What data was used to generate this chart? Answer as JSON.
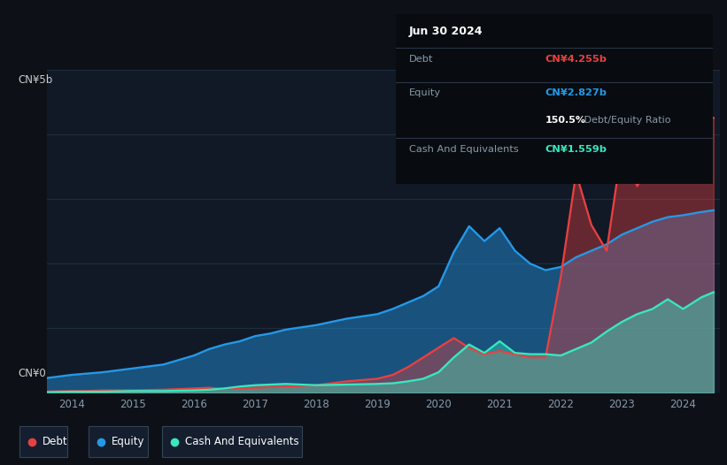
{
  "bg_color": "#0d1117",
  "plot_bg_color": "#111927",
  "title_label": "CN¥5b",
  "zero_label": "CN¥0",
  "x_ticks": [
    2014,
    2015,
    2016,
    2017,
    2018,
    2019,
    2020,
    2021,
    2022,
    2023,
    2024
  ],
  "ylim": [
    0,
    5.0
  ],
  "debt_color": "#e84040",
  "equity_color": "#2499e8",
  "cash_color": "#38e8c0",
  "tooltip_bg": "#080c10",
  "tooltip_title": "Jun 30 2024",
  "tooltip_debt_label": "Debt",
  "tooltip_debt_value": "CN¥4.255b",
  "tooltip_equity_label": "Equity",
  "tooltip_equity_value": "CN¥2.827b",
  "tooltip_ratio": "150.5% Debt/Equity Ratio",
  "tooltip_cash_label": "Cash And Equivalents",
  "tooltip_cash_value": "CN¥1.559b",
  "years": [
    2013.5,
    2014.0,
    2014.25,
    2014.5,
    2015.0,
    2015.5,
    2016.0,
    2016.25,
    2016.5,
    2016.75,
    2017.0,
    2017.25,
    2017.5,
    2018.0,
    2018.5,
    2019.0,
    2019.25,
    2019.5,
    2019.75,
    2020.0,
    2020.25,
    2020.5,
    2020.75,
    2021.0,
    2021.25,
    2021.5,
    2021.75,
    2022.0,
    2022.25,
    2022.5,
    2022.75,
    2023.0,
    2023.25,
    2023.5,
    2023.75,
    2024.0,
    2024.3,
    2024.5
  ],
  "debt": [
    0.02,
    0.03,
    0.03,
    0.04,
    0.04,
    0.05,
    0.07,
    0.08,
    0.06,
    0.07,
    0.08,
    0.09,
    0.1,
    0.12,
    0.18,
    0.22,
    0.28,
    0.4,
    0.55,
    0.7,
    0.85,
    0.7,
    0.6,
    0.65,
    0.6,
    0.55,
    0.55,
    1.8,
    3.4,
    2.6,
    2.2,
    3.8,
    3.2,
    3.7,
    4.8,
    4.0,
    4.3,
    4.255
  ],
  "equity": [
    0.22,
    0.28,
    0.3,
    0.32,
    0.38,
    0.44,
    0.58,
    0.68,
    0.75,
    0.8,
    0.88,
    0.92,
    0.98,
    1.05,
    1.15,
    1.22,
    1.3,
    1.4,
    1.5,
    1.65,
    2.18,
    2.58,
    2.35,
    2.55,
    2.2,
    2.0,
    1.9,
    1.95,
    2.1,
    2.2,
    2.3,
    2.45,
    2.55,
    2.65,
    2.72,
    2.75,
    2.8,
    2.827
  ],
  "cash": [
    0.01,
    0.02,
    0.02,
    0.02,
    0.03,
    0.03,
    0.04,
    0.05,
    0.07,
    0.1,
    0.12,
    0.13,
    0.14,
    0.12,
    0.13,
    0.14,
    0.15,
    0.18,
    0.22,
    0.32,
    0.55,
    0.75,
    0.62,
    0.8,
    0.62,
    0.6,
    0.6,
    0.58,
    0.68,
    0.78,
    0.95,
    1.1,
    1.22,
    1.3,
    1.45,
    1.3,
    1.48,
    1.559
  ],
  "legend_items": [
    "Debt",
    "Equity",
    "Cash And Equivalents"
  ],
  "legend_colors": [
    "#e84040",
    "#2499e8",
    "#38e8c0"
  ]
}
